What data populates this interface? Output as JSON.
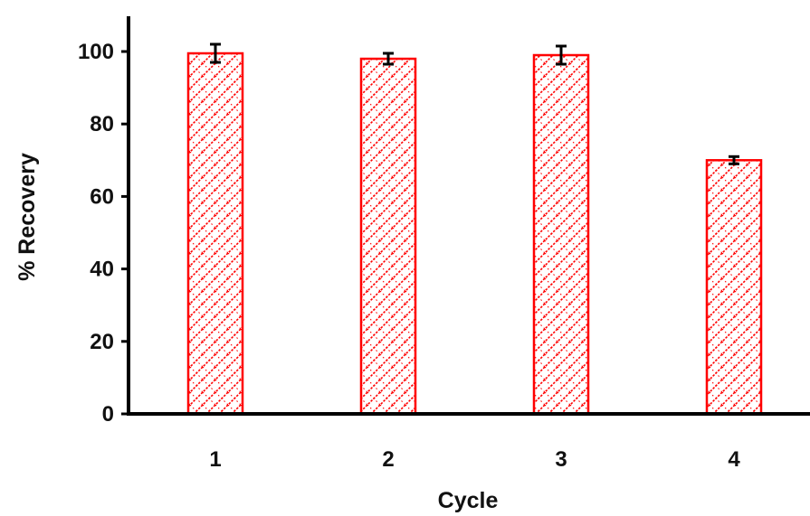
{
  "chart_data": {
    "type": "bar",
    "title": "",
    "xlabel": "Cycle",
    "ylabel": "% Recovery",
    "categories": [
      "1",
      "2",
      "3",
      "4"
    ],
    "values": [
      99.5,
      98,
      99,
      70
    ],
    "errors": [
      2.5,
      1.5,
      2.5,
      1.0
    ],
    "ylim": [
      0,
      100
    ],
    "yticks": [
      "0",
      "20",
      "40",
      "60",
      "80",
      "100"
    ],
    "grid": false,
    "legend": "none",
    "bar_style": "red diagonal hatch with red outline",
    "colors": {
      "bar": "#ff0000",
      "axis": "#000000",
      "error_bar": "#000000"
    }
  }
}
